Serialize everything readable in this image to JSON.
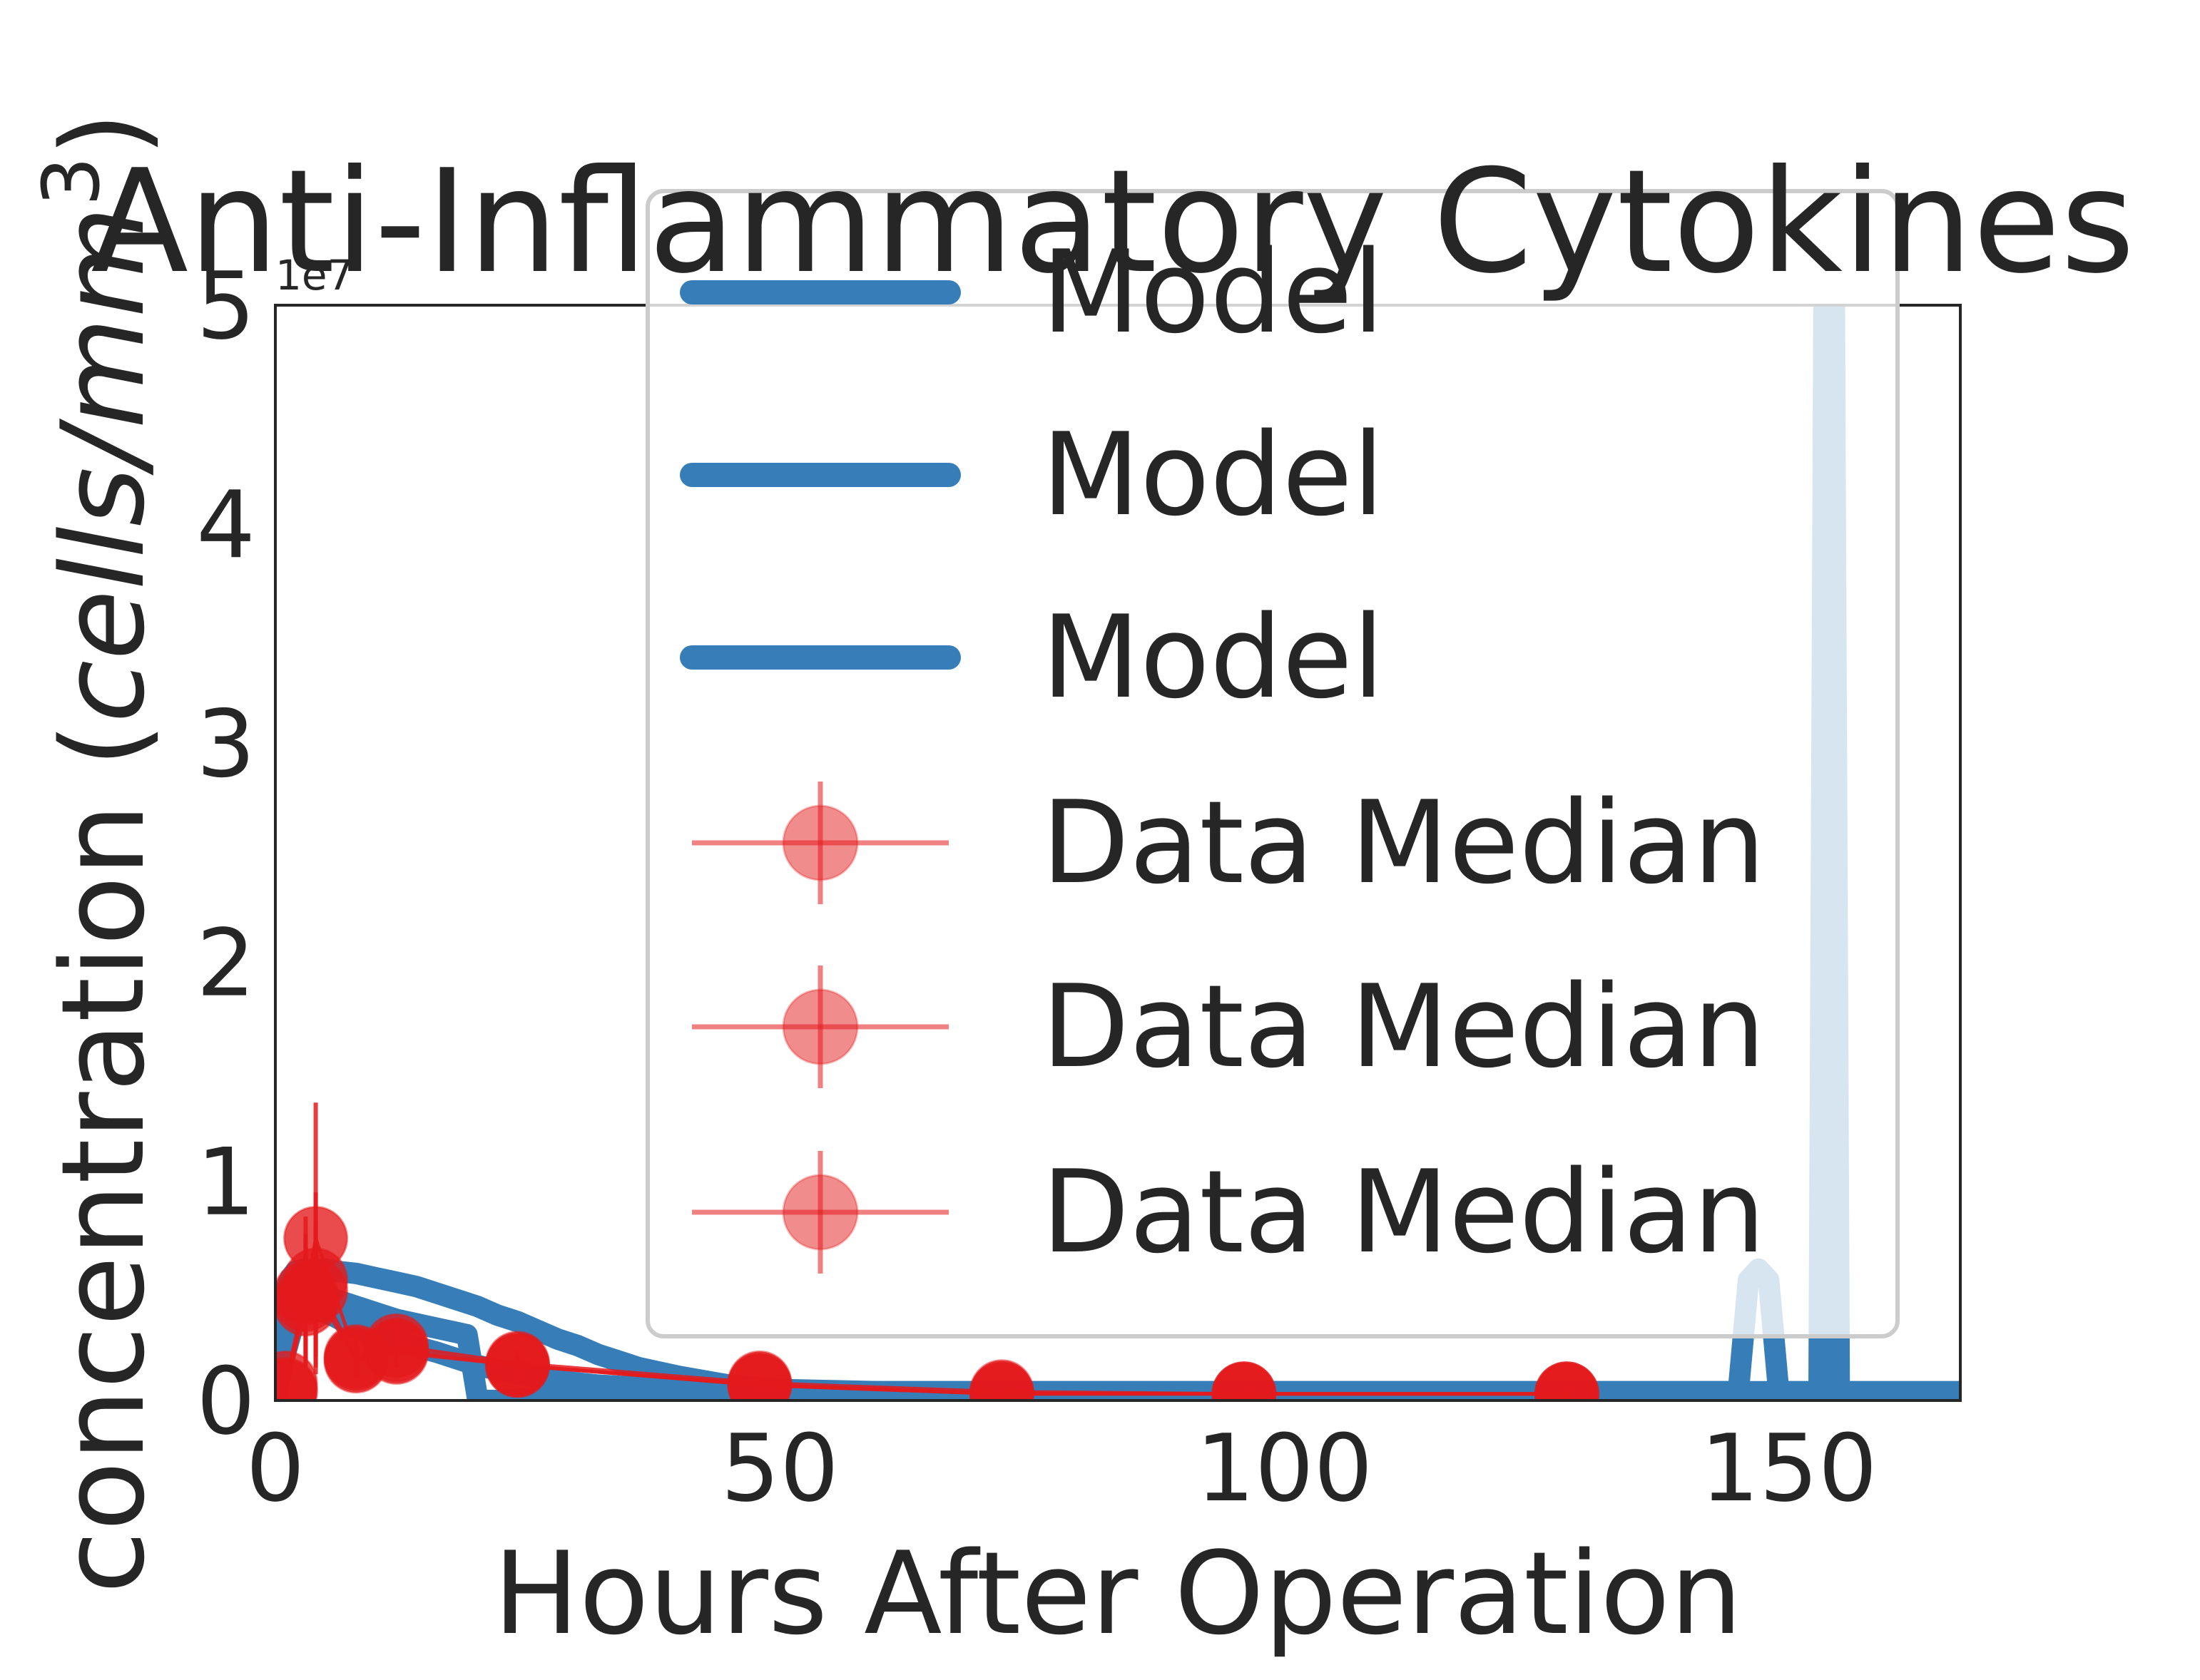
{
  "chart_data": {
    "type": "line",
    "title": "Anti-Inflammatory Cytokines",
    "xlabel": "Hours After Operation",
    "ylabel": "concentration (cells/mm^3)",
    "ylabel_parts": {
      "main": "concentration (",
      "unit": "cells/mm",
      "sup": "3",
      "close": ")"
    },
    "y_offset_label": "1e7",
    "xlim": [
      0,
      167
    ],
    "ylim": [
      0,
      5
    ],
    "y_scale_factor": 10000000,
    "x_ticks": [
      0,
      50,
      100,
      150
    ],
    "y_ticks": [
      0,
      1,
      2,
      3,
      4,
      5
    ],
    "x_tick_labels": [
      "0",
      "50",
      "100",
      "150"
    ],
    "y_tick_labels": [
      "0",
      "1",
      "2",
      "3",
      "4",
      "5"
    ],
    "grid": false,
    "legend_position": "upper-right",
    "legend": [
      "Model",
      "Model",
      "Model",
      "Data Median",
      "Data Median",
      "Data Median"
    ],
    "colors": {
      "model": "#377eb8",
      "data": "#e41a1c",
      "frame": "#262626"
    },
    "series": [
      {
        "role": "model",
        "color": "#377eb8",
        "x": [
          0,
          0.5,
          1,
          1.5,
          2,
          3,
          4,
          5,
          6,
          8,
          10,
          12,
          14,
          16,
          18,
          20,
          22,
          24,
          26,
          28,
          30,
          32,
          34,
          36,
          40,
          45,
          50,
          60,
          70,
          80,
          100,
          120,
          140,
          145,
          146,
          147,
          148,
          149,
          150,
          152,
          153,
          153.5,
          154,
          154.5,
          155,
          156,
          158,
          167
        ],
        "y": [
          0,
          0.35,
          0.5,
          0.56,
          0.59,
          0.6,
          0.6,
          0.6,
          0.59,
          0.58,
          0.56,
          0.54,
          0.52,
          0.49,
          0.46,
          0.43,
          0.39,
          0.36,
          0.32,
          0.28,
          0.25,
          0.21,
          0.18,
          0.15,
          0.11,
          0.07,
          0.05,
          0.04,
          0.04,
          0.04,
          0.04,
          0.04,
          0.04,
          0.04,
          0.55,
          0.6,
          0.55,
          0.04,
          0.04,
          0.04,
          0.04,
          5.2,
          5.2,
          5.2,
          0.04,
          0.04,
          0.04,
          0.04
        ]
      },
      {
        "role": "model",
        "color": "#377eb8",
        "x": [
          0,
          1,
          2,
          3,
          4,
          6,
          8,
          10,
          12,
          16,
          19,
          20,
          20.5,
          21,
          22,
          30,
          40,
          60,
          80,
          100,
          120,
          140,
          144
        ],
        "y": [
          0.05,
          0.42,
          0.5,
          0.5,
          0.49,
          0.46,
          0.43,
          0.4,
          0.37,
          0.33,
          0.3,
          0.02,
          0.0,
          0.0,
          0.0,
          0.02,
          0.03,
          0.04,
          0.04,
          0.04,
          0.04,
          0.04,
          0.04
        ]
      },
      {
        "role": "model",
        "color": "#377eb8",
        "x": [
          0,
          2,
          4,
          6,
          8,
          12,
          16,
          20,
          24,
          28,
          32,
          40,
          50,
          60,
          80,
          100,
          120,
          140,
          160,
          167
        ],
        "y": [
          0.05,
          0.38,
          0.42,
          0.38,
          0.33,
          0.27,
          0.22,
          0.16,
          0.12,
          0.09,
          0.07,
          0.05,
          0.04,
          0.04,
          0.04,
          0.04,
          0.04,
          0.04,
          0.04,
          0.04
        ]
      },
      {
        "role": "data",
        "color": "#e41a1c",
        "x": [
          1,
          3,
          4,
          8,
          12,
          24,
          48,
          72,
          96,
          128
        ],
        "y": [
          0.08,
          0.49,
          0.74,
          0.2,
          0.25,
          0.17,
          0.08,
          0.04,
          0.03,
          0.03
        ],
        "yerr": [
          0.05,
          0.35,
          0.62,
          0.1,
          0.1,
          0.06,
          0.03,
          0.02,
          0.02,
          0.02
        ]
      },
      {
        "role": "data",
        "color": "#e41a1c",
        "x": [
          1,
          3,
          4,
          8,
          12,
          24,
          48,
          72,
          96,
          128
        ],
        "y": [
          0.05,
          0.46,
          0.55,
          0.19,
          0.23,
          0.16,
          0.07,
          0.03,
          0.03,
          0.03
        ],
        "yerr": [
          0.04,
          0.3,
          0.4,
          0.08,
          0.08,
          0.05,
          0.03,
          0.02,
          0.02,
          0.02
        ]
      },
      {
        "role": "data",
        "color": "#e41a1c",
        "x": [
          1,
          3,
          4,
          8,
          12,
          24,
          48,
          72,
          96,
          128
        ],
        "y": [
          0.04,
          0.44,
          0.5,
          0.18,
          0.22,
          0.16,
          0.07,
          0.03,
          0.03,
          0.03
        ],
        "yerr": [
          0.03,
          0.25,
          0.3,
          0.07,
          0.07,
          0.05,
          0.03,
          0.02,
          0.02,
          0.02
        ]
      }
    ]
  }
}
